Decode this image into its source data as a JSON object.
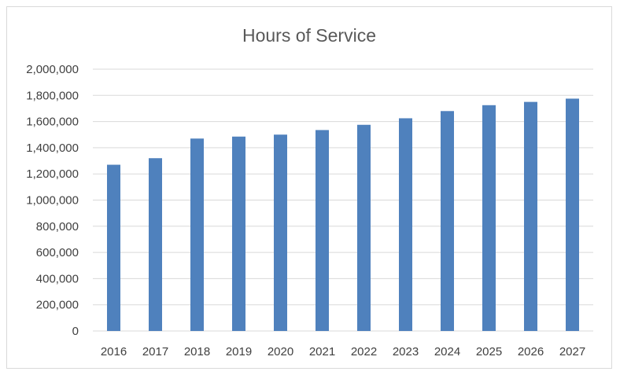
{
  "chart_data": {
    "type": "bar",
    "title": "Hours of Service",
    "xlabel": "",
    "ylabel": "",
    "categories": [
      "2016",
      "2017",
      "2018",
      "2019",
      "2020",
      "2021",
      "2022",
      "2023",
      "2024",
      "2025",
      "2026",
      "2027"
    ],
    "series": [
      {
        "values": [
          1270000,
          1320000,
          1470000,
          1485000,
          1500000,
          1535000,
          1575000,
          1625000,
          1680000,
          1725000,
          1750000,
          1775000
        ]
      }
    ],
    "ylim": [
      0,
      2000000
    ],
    "yticks": [
      "0",
      "200,000",
      "400,000",
      "600,000",
      "800,000",
      "1,000,000",
      "1,200,000",
      "1,400,000",
      "1,600,000",
      "1,800,000",
      "2,000,000"
    ],
    "grid": true,
    "legend": "none",
    "bar_color": "#4f81bd"
  }
}
